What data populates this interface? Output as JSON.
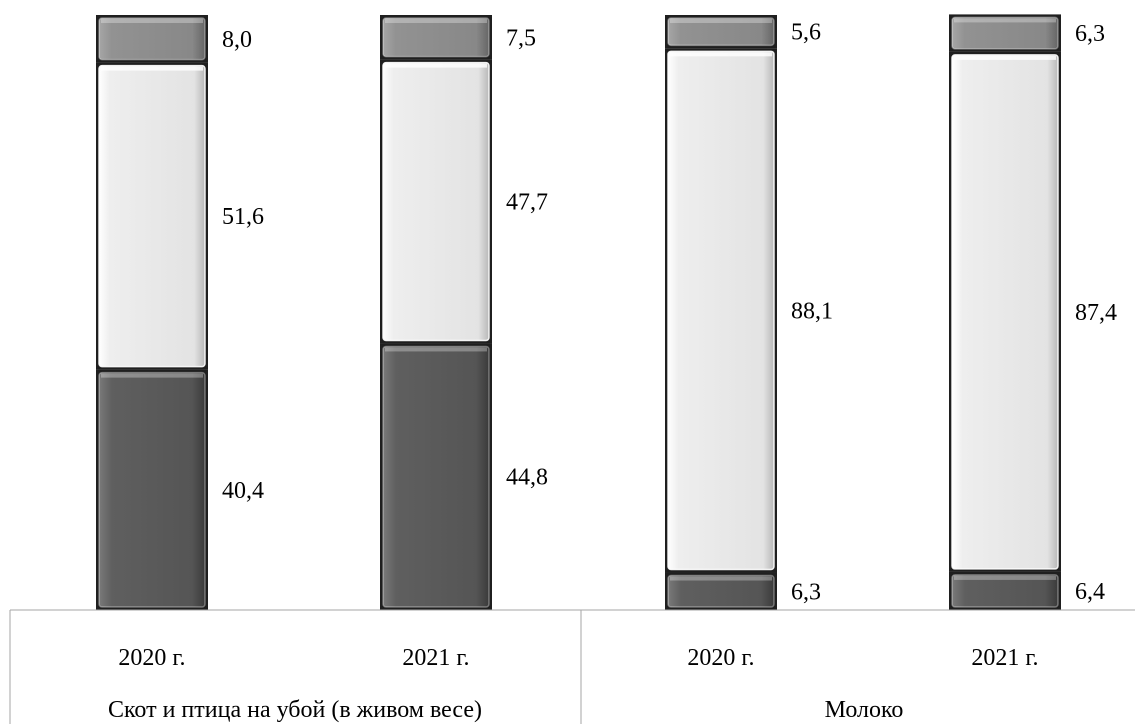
{
  "chart_data": {
    "type": "bar",
    "stacked": true,
    "normalized_percent": true,
    "groups": [
      {
        "label": "Скот и птица на убой (в живом весе)",
        "categories": [
          "2020 г.",
          "2021 г."
        ]
      },
      {
        "label": "Молоко",
        "categories": [
          "2020 г.",
          "2021 г."
        ]
      }
    ],
    "categories": [
      "2020 г.",
      "2021 г.",
      "2020 г.",
      "2021 г."
    ],
    "series": [
      {
        "values": [
          40.4,
          44.8,
          6.3,
          6.4
        ],
        "labels": [
          "40,4",
          "44,8",
          "6,3",
          "6,4"
        ],
        "color": "#5b5b5b"
      },
      {
        "values": [
          51.6,
          47.7,
          88.1,
          87.4
        ],
        "labels": [
          "51,6",
          "47,7",
          "88,1",
          "87,4"
        ],
        "color": "#e6e6e6"
      },
      {
        "values": [
          8.0,
          7.5,
          5.6,
          6.3
        ],
        "labels": [
          "8,0",
          "7,5",
          "5,6",
          "6,3"
        ],
        "color": "#8c8c8c"
      }
    ],
    "ylim": [
      0,
      100
    ],
    "legend": "none",
    "grid": false
  }
}
